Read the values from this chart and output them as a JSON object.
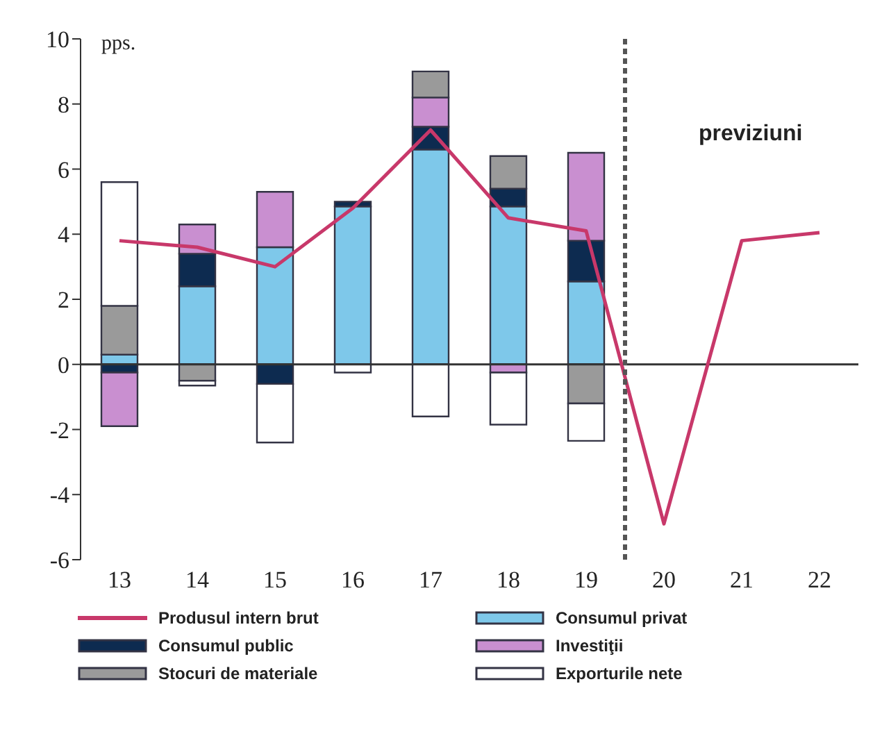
{
  "chart_data": {
    "type": "bar",
    "stacked": true,
    "ylabel": "pps.",
    "x": [
      13,
      14,
      15,
      16,
      17,
      18,
      19,
      20,
      21,
      22
    ],
    "xlim": [
      12.5,
      22.5
    ],
    "xticks": [
      13,
      14,
      15,
      16,
      17,
      18,
      19,
      20,
      21,
      22
    ],
    "ylim": [
      -6,
      10
    ],
    "yticks": [
      -6,
      -4,
      -2,
      0,
      2,
      4,
      6,
      8,
      10
    ],
    "series": [
      {
        "name": "Produsul intern brut",
        "type": "line",
        "color": "#c8386a",
        "values": [
          3.8,
          3.6,
          3.0,
          4.8,
          7.2,
          4.5,
          4.1,
          -4.9,
          3.8,
          4.05
        ]
      },
      {
        "name": "Consumul privat",
        "color": "#7ec8ea",
        "values": [
          0.3,
          2.4,
          3.6,
          4.85,
          6.6,
          4.85,
          2.55,
          null,
          null,
          null
        ]
      },
      {
        "name": "Consumul public",
        "color": "#0d2b50",
        "values": [
          -0.25,
          1.0,
          -0.6,
          0.15,
          0.7,
          0.55,
          1.25,
          null,
          null,
          null
        ]
      },
      {
        "name": "Investiţii",
        "color": "#c98fd0",
        "values": [
          -1.65,
          0.9,
          1.7,
          null,
          0.9,
          -0.25,
          2.7,
          null,
          null,
          null
        ]
      },
      {
        "name": "Stocuri de materiale",
        "color": "#9a9a9a",
        "values": [
          1.5,
          -0.5,
          null,
          null,
          0.8,
          1.0,
          -1.2,
          null,
          null,
          null
        ]
      },
      {
        "name": "Exporturile nete",
        "color": "#ffffff",
        "values": [
          3.8,
          -0.15,
          -1.8,
          -0.25,
          -1.6,
          -1.6,
          -1.15,
          null,
          null,
          null
        ]
      }
    ],
    "ref_lines": [
      {
        "axis": "x",
        "value": 19.5,
        "line_style": "dashed",
        "color": "#555555"
      }
    ],
    "annotations": [
      "previziuni"
    ],
    "legend": "bottom",
    "marker": "none"
  }
}
